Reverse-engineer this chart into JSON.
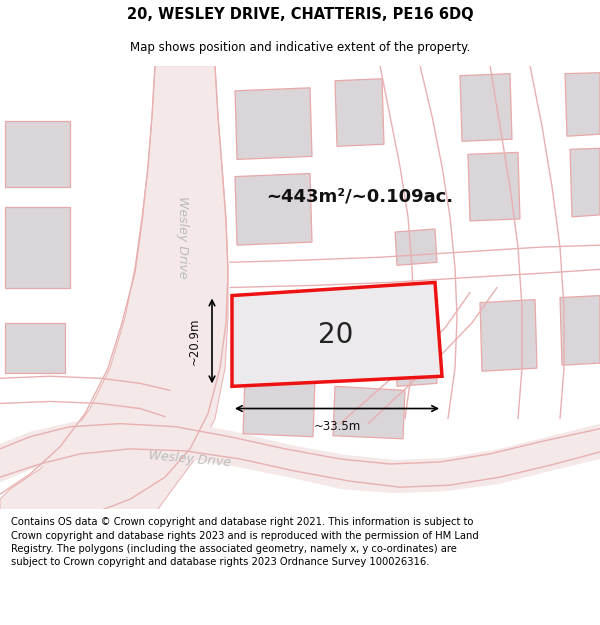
{
  "title": "20, WESLEY DRIVE, CHATTERIS, PE16 6DQ",
  "subtitle": "Map shows position and indicative extent of the property.",
  "area_label": "~443m²/~0.109ac.",
  "plot_number": "20",
  "dim_width": "~33.5m",
  "dim_height": "~20.9m",
  "street_label_bottom": "Wesley Drive",
  "street_label_left": "Wesley Drive",
  "footer": "Contains OS data © Crown copyright and database right 2021. This information is subject to Crown copyright and database rights 2023 and is reproduced with the permission of HM Land Registry. The polygons (including the associated geometry, namely x, y co-ordinates) are subject to Crown copyright and database rights 2023 Ordnance Survey 100026316.",
  "map_bg": "#f7f3f3",
  "road_fill": "#f5e8e8",
  "road_line": "#e8b0b0",
  "plot_fill": "#edeaed",
  "plot_edge": "#ee1111",
  "block_fill": "#d9d5d9",
  "block_edge": "#e8a8a8",
  "title_fontsize": 10.5,
  "subtitle_fontsize": 8.5,
  "footer_fontsize": 7.2,
  "area_fontsize": 13,
  "number_fontsize": 20,
  "dim_fontsize": 8.5,
  "street_fontsize": 9
}
